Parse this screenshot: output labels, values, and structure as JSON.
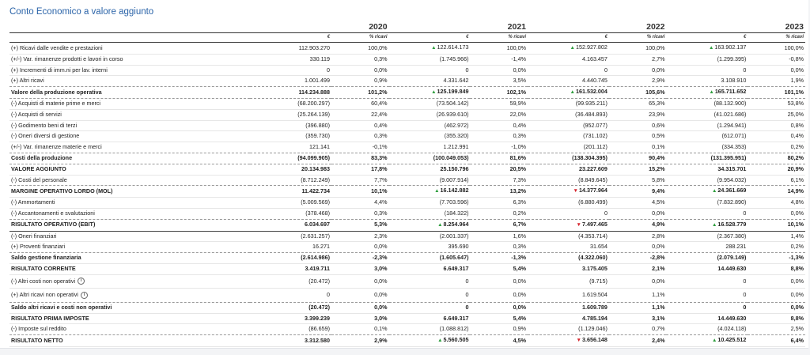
{
  "page": {
    "title": "Conto Economico a valore aggiunto"
  },
  "table": {
    "years": [
      "2020",
      "2021",
      "2022",
      "2023"
    ],
    "unit_eur": "€",
    "unit_pct": "% ricavi",
    "rows": [
      {
        "label": "(+) Ricavi dalle vendite e prestazioni",
        "style": "row",
        "cells": [
          [
            "112.903.270",
            "",
            "100,0%"
          ],
          [
            "122.614.173",
            "up",
            "100,0%"
          ],
          [
            "152.927.802",
            "up",
            "100,0%"
          ],
          [
            "163.902.137",
            "up",
            "100,0%"
          ]
        ]
      },
      {
        "label": "(+/-) Var. rimanenze prodotti e lavori in corso",
        "style": "row",
        "cells": [
          [
            "330.119",
            "",
            "0,3%"
          ],
          [
            "(1.745.966)",
            "",
            "-1,4%"
          ],
          [
            "4.163.457",
            "",
            "2,7%"
          ],
          [
            "(1.299.395)",
            "",
            "-0,8%"
          ]
        ]
      },
      {
        "label": "(+) Incrementi di imm.ni per lav. interni",
        "style": "row",
        "cells": [
          [
            "0",
            "",
            "0,0%"
          ],
          [
            "0",
            "",
            "0,0%"
          ],
          [
            "0",
            "",
            "0,0%"
          ],
          [
            "0",
            "",
            "0,0%"
          ]
        ]
      },
      {
        "label": "(+) Altri ricavi",
        "style": "sep",
        "cells": [
          [
            "1.001.499",
            "",
            "0,9%"
          ],
          [
            "4.331.642",
            "",
            "3,5%"
          ],
          [
            "4.440.745",
            "",
            "2,9%"
          ],
          [
            "3.108.910",
            "",
            "1,9%"
          ]
        ]
      },
      {
        "label": "Valore della produzione operativa",
        "style": "sep bold",
        "cells": [
          [
            "114.234.888",
            "",
            "101,2%"
          ],
          [
            "125.199.849",
            "up",
            "102,1%"
          ],
          [
            "161.532.004",
            "up",
            "105,6%"
          ],
          [
            "165.711.652",
            "up",
            "101,1%"
          ]
        ]
      },
      {
        "label": "(-) Acquisti di materie prime e merci",
        "style": "row",
        "cells": [
          [
            "(68.200.297)",
            "",
            "60,4%"
          ],
          [
            "(73.504.142)",
            "",
            "59,9%"
          ],
          [
            "(99.935.211)",
            "",
            "65,3%"
          ],
          [
            "(88.132.900)",
            "",
            "53,8%"
          ]
        ]
      },
      {
        "label": "(-) Acquisti di servizi",
        "style": "row",
        "cells": [
          [
            "(25.264.139)",
            "",
            "22,4%"
          ],
          [
            "(26.939.610)",
            "",
            "22,0%"
          ],
          [
            "(36.484.893)",
            "",
            "23,9%"
          ],
          [
            "(41.021.686)",
            "",
            "25,0%"
          ]
        ]
      },
      {
        "label": "(-) Godimento beni di terzi",
        "style": "row",
        "cells": [
          [
            "(396.880)",
            "",
            "0,4%"
          ],
          [
            "(462.972)",
            "",
            "0,4%"
          ],
          [
            "(952.077)",
            "",
            "0,6%"
          ],
          [
            "(1.294.941)",
            "",
            "0,8%"
          ]
        ]
      },
      {
        "label": "(-) Oneri diversi di gestione",
        "style": "row",
        "cells": [
          [
            "(359.730)",
            "",
            "0,3%"
          ],
          [
            "(355.320)",
            "",
            "0,3%"
          ],
          [
            "(731.102)",
            "",
            "0,5%"
          ],
          [
            "(612.071)",
            "",
            "0,4%"
          ]
        ]
      },
      {
        "label": "(+/-) Var. rimanenze materie e merci",
        "style": "sep",
        "cells": [
          [
            "121.141",
            "",
            "-0,1%"
          ],
          [
            "1.212.991",
            "",
            "-1,0%"
          ],
          [
            "(201.112)",
            "",
            "0,1%"
          ],
          [
            "(334.353)",
            "",
            "0,2%"
          ]
        ]
      },
      {
        "label": "Costi della produzione",
        "style": "sep bold",
        "cells": [
          [
            "(94.099.905)",
            "",
            "83,3%"
          ],
          [
            "(100.049.053)",
            "",
            "81,6%"
          ],
          [
            "(138.304.395)",
            "",
            "90,4%"
          ],
          [
            "(131.395.951)",
            "",
            "80,2%"
          ]
        ]
      },
      {
        "label": "VALORE AGGIUNTO",
        "style": "row bold",
        "cells": [
          [
            "20.134.983",
            "",
            "17,8%"
          ],
          [
            "25.150.796",
            "",
            "20,5%"
          ],
          [
            "23.227.609",
            "",
            "15,2%"
          ],
          [
            "34.315.701",
            "",
            "20,9%"
          ]
        ]
      },
      {
        "label": "(-) Costi del personale",
        "style": "sep",
        "cells": [
          [
            "(8.712.249)",
            "",
            "7,7%"
          ],
          [
            "(9.007.914)",
            "",
            "7,3%"
          ],
          [
            "(8.849.645)",
            "",
            "5,8%"
          ],
          [
            "(9.954.032)",
            "",
            "6,1%"
          ]
        ]
      },
      {
        "label": "MARGINE OPERATIVO LORDO (MOL)",
        "style": "row bold",
        "cells": [
          [
            "11.422.734",
            "",
            "10,1%"
          ],
          [
            "16.142.882",
            "up",
            "13,2%"
          ],
          [
            "14.377.964",
            "down",
            "9,4%"
          ],
          [
            "24.361.669",
            "up",
            "14,9%"
          ]
        ]
      },
      {
        "label": "(-) Ammortamenti",
        "style": "row",
        "cells": [
          [
            "(5.009.569)",
            "",
            "4,4%"
          ],
          [
            "(7.703.596)",
            "",
            "6,3%"
          ],
          [
            "(6.880.499)",
            "",
            "4,5%"
          ],
          [
            "(7.832.890)",
            "",
            "4,8%"
          ]
        ]
      },
      {
        "label": "(-) Accantonamenti e svalutazioni",
        "style": "sep",
        "cells": [
          [
            "(378.468)",
            "",
            "0,3%"
          ],
          [
            "(184.322)",
            "",
            "0,2%"
          ],
          [
            "0",
            "",
            "0,0%"
          ],
          [
            "0",
            "",
            "0,0%"
          ]
        ]
      },
      {
        "label": "RISULTATO OPERATIVO (EBIT)",
        "style": "solid bold",
        "cells": [
          [
            "6.034.697",
            "",
            "5,3%"
          ],
          [
            "8.254.964",
            "up",
            "6,7%"
          ],
          [
            "7.497.465",
            "down",
            "4,9%"
          ],
          [
            "16.528.779",
            "up",
            "10,1%"
          ]
        ]
      },
      {
        "label": "(-) Oneri finanziari",
        "style": "row",
        "cells": [
          [
            "(2.631.257)",
            "",
            "2,3%"
          ],
          [
            "(2.001.337)",
            "",
            "1,6%"
          ],
          [
            "(4.353.714)",
            "",
            "2,8%"
          ],
          [
            "(2.367.380)",
            "",
            "1,4%"
          ]
        ]
      },
      {
        "label": "(+) Proventi finanziari",
        "style": "sep",
        "cells": [
          [
            "16.271",
            "",
            "0,0%"
          ],
          [
            "395.690",
            "",
            "0,3%"
          ],
          [
            "31.654",
            "",
            "0,0%"
          ],
          [
            "288.231",
            "",
            "0,2%"
          ]
        ]
      },
      {
        "label": "Saldo gestione finanziaria",
        "style": "row bold",
        "cells": [
          [
            "(2.614.986)",
            "",
            "-2,3%"
          ],
          [
            "(1.605.647)",
            "",
            "-1,3%"
          ],
          [
            "(4.322.060)",
            "",
            "-2,8%"
          ],
          [
            "(2.079.149)",
            "",
            "-1,3%"
          ]
        ]
      },
      {
        "label": "RISULTATO CORRENTE",
        "style": "row bold",
        "cells": [
          [
            "3.419.711",
            "",
            "3,0%"
          ],
          [
            "6.649.317",
            "",
            "5,4%"
          ],
          [
            "3.175.405",
            "",
            "2,1%"
          ],
          [
            "14.449.630",
            "",
            "8,8%"
          ]
        ]
      },
      {
        "label": "(-) Altri costi non operativi",
        "style": "row tall",
        "info": true,
        "cells": [
          [
            "(20.472)",
            "",
            "0,0%"
          ],
          [
            "0",
            "",
            "0,0%"
          ],
          [
            "(9.715)",
            "",
            "0,0%"
          ],
          [
            "0",
            "",
            "0,0%"
          ]
        ]
      },
      {
        "label": "(+) Altri ricavi non operativi",
        "style": "sep tall",
        "info": true,
        "cells": [
          [
            "0",
            "",
            "0,0%"
          ],
          [
            "0",
            "",
            "0,0%"
          ],
          [
            "1.619.504",
            "",
            "1,1%"
          ],
          [
            "0",
            "",
            "0,0%"
          ]
        ]
      },
      {
        "label": "Saldo altri ricavi e costi non operativi",
        "style": "row bold",
        "cells": [
          [
            "(20.472)",
            "",
            "0,0%"
          ],
          [
            "0",
            "",
            "0,0%"
          ],
          [
            "1.609.789",
            "",
            "1,1%"
          ],
          [
            "0",
            "",
            "0,0%"
          ]
        ]
      },
      {
        "label": "RISULTATO PRIMA IMPOSTE",
        "style": "row bold",
        "cells": [
          [
            "3.399.239",
            "",
            "3,0%"
          ],
          [
            "6.649.317",
            "",
            "5,4%"
          ],
          [
            "4.785.194",
            "",
            "3,1%"
          ],
          [
            "14.449.630",
            "",
            "8,8%"
          ]
        ]
      },
      {
        "label": "(-) Imposte sul reddito",
        "style": "sep",
        "cells": [
          [
            "(86.659)",
            "",
            "0,1%"
          ],
          [
            "(1.088.812)",
            "",
            "0,9%"
          ],
          [
            "(1.129.046)",
            "",
            "0,7%"
          ],
          [
            "(4.024.118)",
            "",
            "2,5%"
          ]
        ]
      },
      {
        "label": "RISULTATO NETTO",
        "style": "row bold",
        "cells": [
          [
            "3.312.580",
            "",
            "2,9%"
          ],
          [
            "5.560.505",
            "up",
            "4,5%"
          ],
          [
            "3.656.148",
            "down",
            "2,4%"
          ],
          [
            "10.425.512",
            "up",
            "6,4%"
          ]
        ]
      }
    ]
  }
}
